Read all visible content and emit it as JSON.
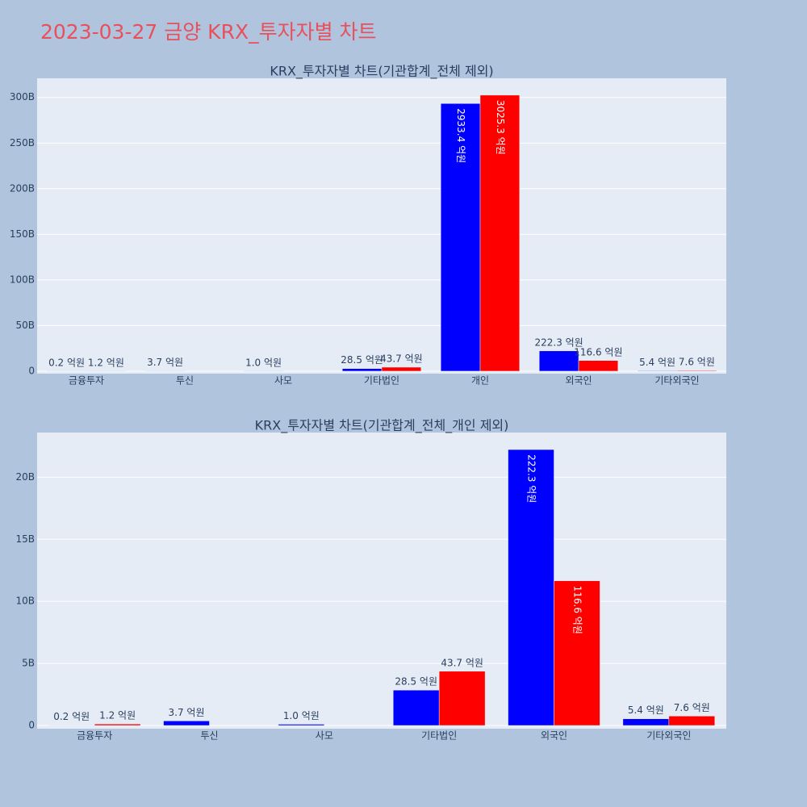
{
  "title": "2023-03-27 금양 KRX_투자자별 차트",
  "chart_data": [
    {
      "type": "bar",
      "title": "KRX_투자자별 차트(기관합계_전체 제외)",
      "categories": [
        "금융투자",
        "투신",
        "사모",
        "기타법인",
        "개인",
        "외국인",
        "기타외국인"
      ],
      "series": [
        {
          "color": "#0000ff",
          "values": [
            0.02,
            0.37,
            0.1,
            2.85,
            293.34,
            22.23,
            0.54
          ],
          "value_labels": [
            "0.2 억원",
            "3.7 억원",
            "1.0 억원",
            "28.5 억원",
            "2933.4 억원",
            "222.3 억원",
            "5.4 억원"
          ]
        },
        {
          "color": "#ff0000",
          "values": [
            0.12,
            null,
            null,
            4.37,
            302.53,
            11.66,
            0.76
          ],
          "value_labels": [
            "1.2 억원",
            null,
            null,
            "43.7 억원",
            "3025.3 억원",
            "116.6 억원",
            "7.6 억원"
          ]
        }
      ],
      "ylim": [
        -2.7,
        321
      ],
      "yticks": [
        0,
        {
          "value": 50,
          "label": "50B"
        },
        {
          "value": 100,
          "label": "100B"
        },
        {
          "value": 150,
          "label": "150B"
        },
        {
          "value": 200,
          "label": "200B"
        },
        {
          "value": 250,
          "label": "250B"
        },
        {
          "value": 300,
          "label": "300B"
        }
      ],
      "grid": true
    },
    {
      "type": "bar",
      "title": "KRX_투자자별 차트(기관합계_전체_개인 제외)",
      "categories": [
        "금융투자",
        "투신",
        "사모",
        "기타법인",
        "외국인",
        "기타외국인"
      ],
      "series": [
        {
          "color": "#0000ff",
          "values": [
            0.02,
            0.37,
            0.1,
            2.85,
            22.23,
            0.54
          ],
          "value_labels": [
            "0.2 억원",
            "3.7 억원",
            "1.0 억원",
            "28.5 억원",
            "222.3 억원",
            "5.4 억원"
          ]
        },
        {
          "color": "#ff0000",
          "values": [
            0.12,
            null,
            null,
            4.37,
            11.66,
            0.76
          ],
          "value_labels": [
            "1.2 억원",
            null,
            null,
            "43.7 억원",
            "116.6 억원",
            "7.6 억원"
          ]
        }
      ],
      "ylim": [
        -0.26,
        23.6
      ],
      "yticks": [
        0,
        {
          "value": 5,
          "label": "5B"
        },
        {
          "value": 10,
          "label": "10B"
        },
        {
          "value": 15,
          "label": "15B"
        },
        {
          "value": 20,
          "label": "20B"
        }
      ],
      "grid": true
    }
  ]
}
